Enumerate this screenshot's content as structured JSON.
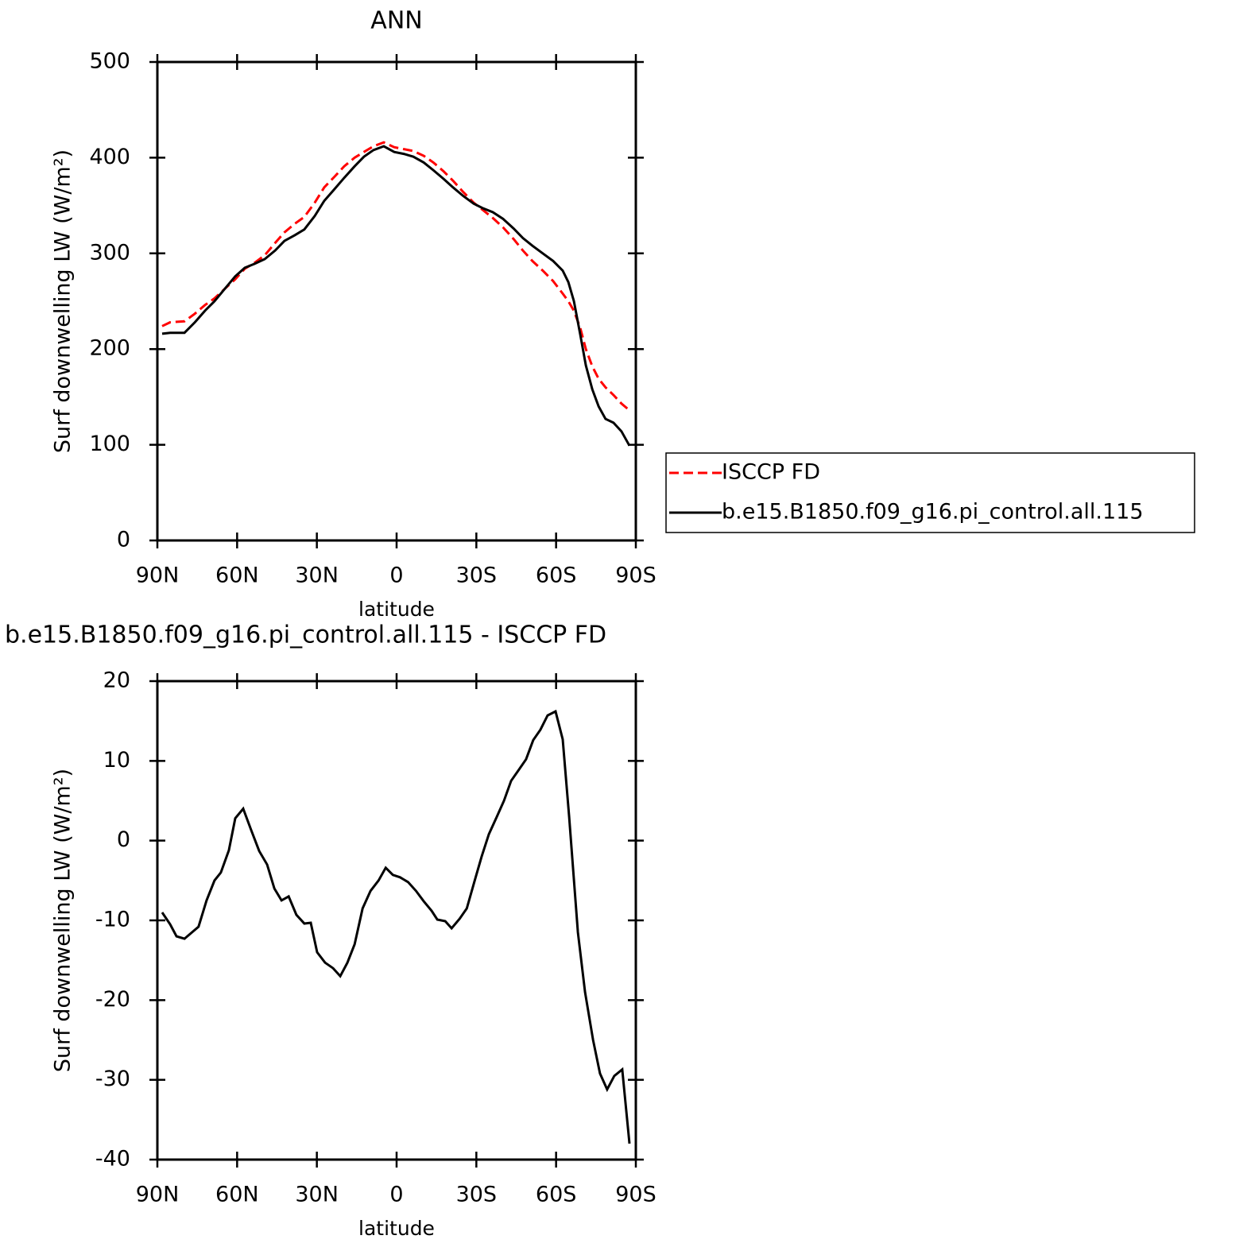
{
  "chart_data": [
    {
      "type": "line",
      "title": "ANN",
      "xlabel": "latitude",
      "ylabel": "Surf downwelling LW (W/m²)",
      "xlim": [
        90,
        -90
      ],
      "xticks": [
        {
          "value": 90,
          "label": "90N"
        },
        {
          "value": 60,
          "label": "60N"
        },
        {
          "value": 30,
          "label": "30N"
        },
        0,
        {
          "value": -30,
          "label": "30S"
        },
        {
          "value": -60,
          "label": "60S"
        },
        {
          "value": -90,
          "label": "90S"
        }
      ],
      "ylim": [
        0,
        500
      ],
      "yticks": [
        0,
        100,
        200,
        300,
        400,
        500
      ],
      "legend": "right",
      "x": [
        88.2,
        85.2,
        79.8,
        75.9,
        72.1,
        68.5,
        64.6,
        60.7,
        57.1,
        53.5,
        49.6,
        45.7,
        42.2,
        38.3,
        34.7,
        30.8,
        27.2,
        23.4,
        19.7,
        15.8,
        12.3,
        8.7,
        4.8,
        0.9,
        -2.7,
        -6.3,
        -10.2,
        -13.8,
        -17.6,
        -21.2,
        -25.1,
        -29,
        -32.6,
        -36.2,
        -40.1,
        -44,
        -47.5,
        -51.1,
        -55,
        -58.9,
        -62.5,
        -64.6,
        -66.7,
        -69.1,
        -71.2,
        -73.6,
        -76,
        -78.6,
        -81.6,
        -84.6,
        -87.6
      ],
      "series": [
        {
          "name": "ISCCP FD",
          "color": "#ff0000",
          "dash": true,
          "values": [
            224,
            228,
            229,
            237,
            246,
            253,
            263,
            273,
            284,
            290,
            298,
            311,
            322,
            331,
            338,
            353,
            369,
            380,
            391,
            400,
            406,
            412,
            416,
            411,
            409,
            407,
            402,
            395,
            386,
            376,
            364,
            353,
            345,
            337,
            327,
            315,
            303,
            292,
            282,
            271,
            258,
            250,
            240,
            222,
            200,
            182,
            169,
            160,
            152,
            143,
            136
          ]
        },
        {
          "name": "b.e15.B1850.f09_g16.pi_control.all.115",
          "color": "#000000",
          "dash": false,
          "values": [
            216,
            217,
            217,
            228,
            240,
            250,
            263,
            276,
            285,
            289,
            294,
            303,
            313,
            319,
            325,
            339,
            355,
            367,
            379,
            391,
            401,
            408,
            412,
            406,
            404,
            401,
            395,
            387,
            378,
            369,
            360,
            352,
            347,
            343,
            336,
            326,
            316,
            308,
            300,
            292,
            282,
            270,
            250,
            215,
            183,
            158,
            140,
            127,
            123,
            114,
            99
          ]
        }
      ]
    },
    {
      "type": "line",
      "title": "b.e15.B1850.f09_g16.pi_control.all.115 - ISCCP FD",
      "xlabel": "latitude",
      "ylabel": "Surf downwelling LW (W/m²)",
      "xlim": [
        90,
        -90
      ],
      "xticks": [
        {
          "value": 90,
          "label": "90N"
        },
        {
          "value": 60,
          "label": "60N"
        },
        {
          "value": 30,
          "label": "30N"
        },
        0,
        {
          "value": -30,
          "label": "30S"
        },
        {
          "value": -60,
          "label": "60S"
        },
        {
          "value": -90,
          "label": "90S"
        }
      ],
      "ylim": [
        -40,
        20
      ],
      "yticks": [
        -40,
        -30,
        -20,
        -10,
        0,
        10,
        20
      ],
      "x": [
        88.2,
        85.2,
        82.8,
        79.8,
        74.5,
        71.5,
        68.5,
        66.1,
        63.1,
        60.7,
        57.7,
        54.7,
        51.7,
        48.7,
        46.0,
        43.3,
        40.6,
        37.7,
        34.7,
        32.3,
        29.9,
        26.9,
        23.9,
        21.2,
        18.5,
        15.8,
        12.8,
        9.8,
        6.8,
        4.1,
        1.4,
        -1.3,
        -4.3,
        -7.3,
        -10.2,
        -13.2,
        -15.3,
        -18.3,
        -20.7,
        -23.7,
        -26.4,
        -29.4,
        -32,
        -34.7,
        -37.7,
        -40.4,
        -43.1,
        -45.8,
        -48.7,
        -51.4,
        -54.1,
        -56.8,
        -59.8,
        -62.5,
        -64.9,
        -68.2,
        -70.9,
        -73.9,
        -76.5,
        -79.2,
        -81.9,
        -84.9,
        -87.6
      ],
      "series": [
        {
          "color": "#000000",
          "dash": false,
          "values": [
            -9,
            -10.5,
            -12,
            -12.3,
            -10.8,
            -7.5,
            -5,
            -4,
            -1.2,
            2.8,
            4,
            1.3,
            -1.3,
            -3,
            -6,
            -7.5,
            -7,
            -9.3,
            -10.4,
            -10.3,
            -14,
            -15.3,
            -16,
            -17,
            -15.3,
            -13,
            -8.5,
            -6.3,
            -5,
            -3.4,
            -4.3,
            -4.6,
            -5.2,
            -6.3,
            -7.6,
            -8.8,
            -9.9,
            -10.1,
            -11,
            -9.8,
            -8.5,
            -5,
            -2,
            0.8,
            3,
            5,
            7.5,
            8.8,
            10.2,
            12.6,
            13.9,
            15.7,
            16.2,
            12.7,
            3,
            -11.5,
            -19,
            -25,
            -29.2,
            -31.2,
            -29.5,
            -28.7,
            -38
          ]
        }
      ]
    }
  ]
}
